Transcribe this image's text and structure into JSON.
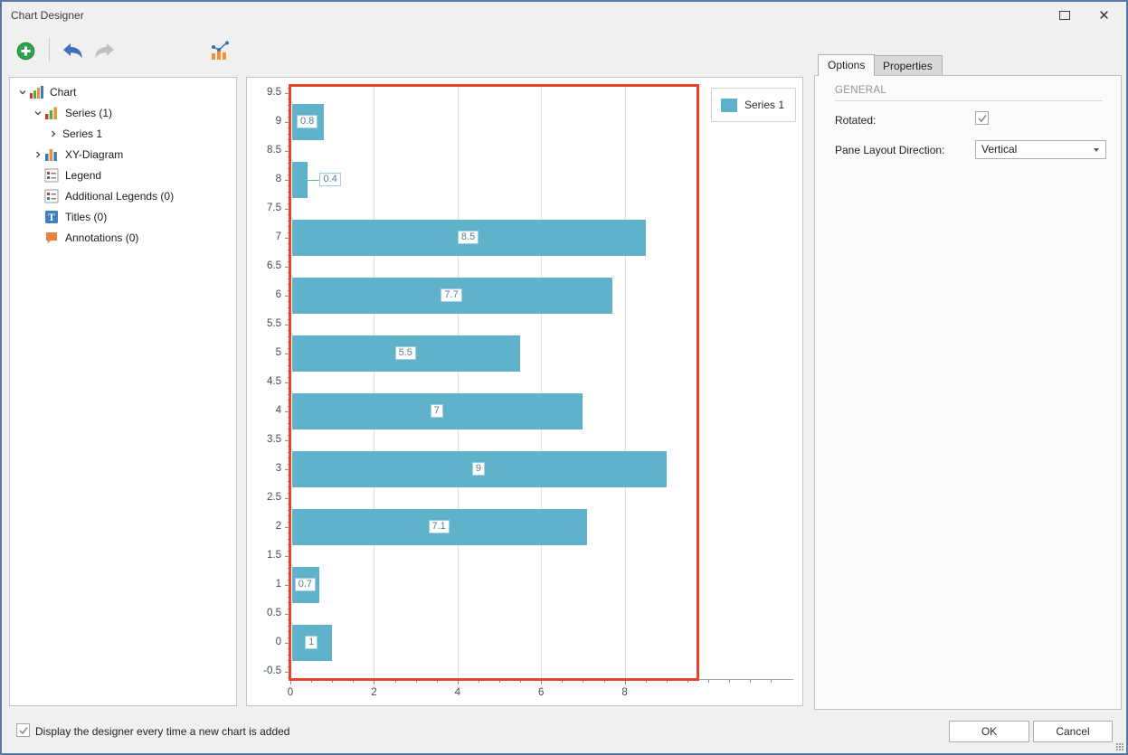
{
  "window": {
    "title": "Chart Designer",
    "close_glyph": "✕"
  },
  "toolbar": {
    "icons": [
      "add",
      "undo",
      "redo",
      "chart-type"
    ]
  },
  "tree": {
    "items": [
      {
        "label": "Chart",
        "level": 0,
        "expander": "expanded",
        "icon": "chart"
      },
      {
        "label": "Series (1)",
        "level": 1,
        "expander": "expanded",
        "icon": "series"
      },
      {
        "label": "Series 1",
        "level": 2,
        "expander": "collapsed",
        "icon": null
      },
      {
        "label": "XY-Diagram",
        "level": 1,
        "expander": "collapsed",
        "icon": "diagram"
      },
      {
        "label": "Legend",
        "level": 1,
        "expander": "none",
        "icon": "legend"
      },
      {
        "label": "Additional Legends (0)",
        "level": 1,
        "expander": "none",
        "icon": "legend"
      },
      {
        "label": "Titles (0)",
        "level": 1,
        "expander": "none",
        "icon": "title"
      },
      {
        "label": "Annotations (0)",
        "level": 1,
        "expander": "none",
        "icon": "annotation"
      }
    ]
  },
  "chart_data": {
    "type": "bar",
    "orientation": "horizontal-rotated",
    "categories": [
      0,
      1,
      2,
      3,
      4,
      5,
      6,
      7,
      8,
      9
    ],
    "series": [
      {
        "name": "Series 1",
        "color": "#5fb2c9",
        "values": [
          1,
          0.7,
          7.1,
          9,
          7,
          5.5,
          7.7,
          8.5,
          0.4,
          0.8
        ]
      }
    ],
    "point_labels": [
      "1",
      "0.7",
      "7.1",
      "9",
      "7",
      "5.5",
      "7.7",
      "8.5",
      "0.4",
      "0.8"
    ],
    "value_axis": {
      "min": 0,
      "max": 9.74,
      "major_tick_step": 2,
      "minor_tick_step": 0.5,
      "tick_labels": [
        "0",
        "2",
        "4",
        "6",
        "8"
      ]
    },
    "argument_axis": {
      "min": -0.625,
      "max": 9.625,
      "label_step": 0.5,
      "minor_tick_step": 0.1,
      "labels": [
        "-0.5",
        "0",
        "0.5",
        "1",
        "1.5",
        "2",
        "2.5",
        "3",
        "3.5",
        "4",
        "4.5",
        "5",
        "5.5",
        "6",
        "6.5",
        "7",
        "7.5",
        "8",
        "8.5",
        "9",
        "9.5"
      ]
    },
    "legend": {
      "position": "top-right",
      "items": [
        "Series 1"
      ]
    },
    "grid": true,
    "selection_border_color": "#e8432a"
  },
  "options_panel": {
    "tabs": [
      "Options",
      "Properties"
    ],
    "active_tab": "Options",
    "section_header": "GENERAL",
    "fields": [
      {
        "label": "Rotated:",
        "type": "checkbox",
        "checked": true
      },
      {
        "label": "Pane Layout Direction:",
        "type": "dropdown",
        "value": "Vertical"
      }
    ]
  },
  "footer": {
    "checkbox_label": "Display the designer every time a new chart is added",
    "checkbox_checked": true,
    "ok_label": "OK",
    "cancel_label": "Cancel"
  }
}
